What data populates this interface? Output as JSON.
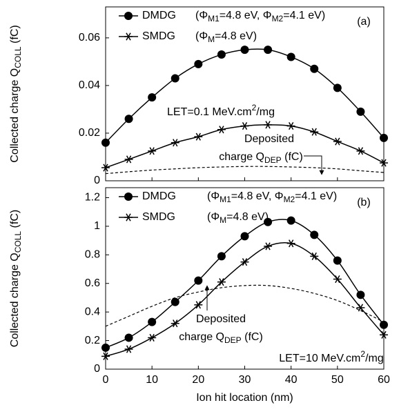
{
  "chart_data": [
    {
      "type": "line",
      "panel_label": "(a)",
      "ylabel": [
        "Collected charge Q",
        "COLL",
        " (fC)"
      ],
      "let_label": [
        "LET=0.1 MeV.cm",
        "2",
        "/mg"
      ],
      "deposited_label": {
        "line1": "Deposited",
        "line2": [
          "charge Q",
          "DEP",
          " (fC)"
        ]
      },
      "x": [
        0,
        5,
        10,
        15,
        20,
        25,
        30,
        35,
        40,
        45,
        50,
        55,
        60
      ],
      "xlim": [
        0,
        60
      ],
      "xticks": [
        0,
        10,
        20,
        30,
        40,
        50,
        60
      ],
      "ylim": [
        0,
        0.073
      ],
      "yticks": [
        0,
        0.02,
        0.04,
        0.06
      ],
      "series": [
        {
          "name": "DMDG",
          "note": [
            "(Φ",
            "M1",
            "=4.8 eV, Φ",
            "M2",
            "=4.1 eV)"
          ],
          "marker": "circle",
          "color": "#000000",
          "values": [
            0.016,
            0.026,
            0.035,
            0.043,
            0.049,
            0.053,
            0.055,
            0.055,
            0.052,
            0.047,
            0.039,
            0.029,
            0.018
          ]
        },
        {
          "name": "SMDG",
          "note": [
            "(Φ",
            "M",
            "=4.8 eV)"
          ],
          "marker": "star",
          "color": "#000000",
          "values": [
            0.0055,
            0.009,
            0.0125,
            0.016,
            0.0185,
            0.0215,
            0.023,
            0.0235,
            0.023,
            0.0205,
            0.0165,
            0.0125,
            0.0075
          ]
        }
      ],
      "deposited_curve": {
        "color": "#000000",
        "dashed": true,
        "values": [
          0.003,
          0.0038,
          0.0045,
          0.005,
          0.0055,
          0.0058,
          0.006,
          0.006,
          0.0058,
          0.0055,
          0.005,
          0.0042,
          0.0035
        ]
      }
    },
    {
      "type": "line",
      "panel_label": "(b)",
      "ylabel": [
        "Collected charge Q",
        "COLL",
        " (fC)"
      ],
      "xlabel": "Ion hit location (nm)",
      "let_label": [
        "LET=10 MeV.cm",
        "2",
        "/mg"
      ],
      "deposited_label": {
        "line1": "Deposited",
        "line2": [
          "charge Q",
          "DEP",
          " (fC)"
        ]
      },
      "x": [
        0,
        5,
        10,
        15,
        20,
        25,
        30,
        35,
        40,
        45,
        50,
        55,
        60
      ],
      "xlim": [
        0,
        60
      ],
      "xticks": [
        0,
        10,
        20,
        30,
        40,
        50,
        60
      ],
      "ylim": [
        0,
        1.27
      ],
      "yticks": [
        0,
        0.2,
        0.4,
        0.6,
        0.8,
        1,
        1.2
      ],
      "series": [
        {
          "name": "DMDG",
          "note": [
            "(Φ",
            "M1",
            "=4.8 eV, Φ",
            "M2",
            "=4.1 eV)"
          ],
          "marker": "circle",
          "color": "#000000",
          "values": [
            0.15,
            0.22,
            0.33,
            0.47,
            0.62,
            0.79,
            0.93,
            1.03,
            1.04,
            0.94,
            0.76,
            0.52,
            0.31
          ]
        },
        {
          "name": "SMDG",
          "note": [
            "(Φ",
            "M",
            "=4.8 eV)"
          ],
          "marker": "star",
          "color": "#000000",
          "values": [
            0.09,
            0.14,
            0.22,
            0.32,
            0.45,
            0.61,
            0.75,
            0.86,
            0.88,
            0.79,
            0.63,
            0.43,
            0.24
          ]
        }
      ],
      "deposited_curve": {
        "color": "#000000",
        "dashed": true,
        "values": [
          0.3,
          0.37,
          0.44,
          0.5,
          0.54,
          0.57,
          0.585,
          0.585,
          0.565,
          0.53,
          0.48,
          0.41,
          0.33
        ]
      }
    }
  ]
}
